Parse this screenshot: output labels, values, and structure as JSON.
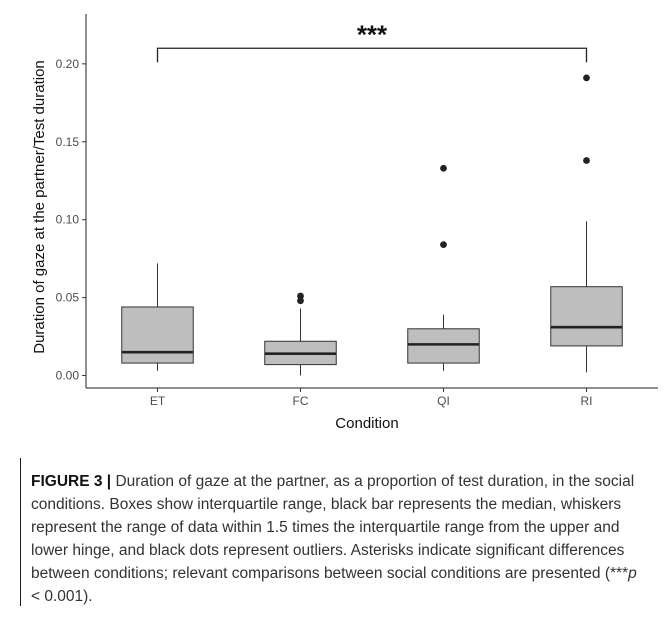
{
  "chart_data": {
    "type": "box",
    "ylabel": "Duration of gaze at the partner/Test duration",
    "xlabel": "Condition",
    "ylim": [
      -0.008,
      0.232
    ],
    "yticks": [
      0.0,
      0.05,
      0.1,
      0.15,
      0.2
    ],
    "ytick_labels": [
      "0.00",
      "0.05",
      "0.10",
      "0.15",
      "0.20"
    ],
    "grid": false,
    "box_color": "#bebebe",
    "categories": [
      "ET",
      "FC",
      "QI",
      "RI"
    ],
    "boxes": [
      {
        "category": "ET",
        "whisker_low": 0.003,
        "q1": 0.008,
        "median": 0.015,
        "q3": 0.044,
        "whisker_high": 0.072,
        "outliers": []
      },
      {
        "category": "FC",
        "whisker_low": 0.0,
        "q1": 0.007,
        "median": 0.014,
        "q3": 0.022,
        "whisker_high": 0.043,
        "outliers": [
          0.048,
          0.051
        ]
      },
      {
        "category": "QI",
        "whisker_low": 0.003,
        "q1": 0.008,
        "median": 0.02,
        "q3": 0.03,
        "whisker_high": 0.039,
        "outliers": [
          0.084,
          0.133
        ]
      },
      {
        "category": "RI",
        "whisker_low": 0.002,
        "q1": 0.019,
        "median": 0.031,
        "q3": 0.057,
        "whisker_high": 0.099,
        "outliers": [
          0.138,
          0.191
        ]
      }
    ],
    "significance": {
      "from": "ET",
      "to": "RI",
      "y": 0.21,
      "label": "***"
    }
  },
  "caption": {
    "figure_label": "FIGURE 3 |",
    "text_main": " Duration of gaze at the partner, as a proportion of test duration, in the social conditions. Boxes show interquartile range, black bar represents the median, whiskers represent the range of data within 1.5 times the interquartile range from the upper and lower hinge, and black dots represent outliers. Asterisks indicate significant differences between conditions; relevant comparisons between social conditions are presented (",
    "p_stars": "***",
    "p_symbol": "p",
    "p_rest": " < 0.001)."
  }
}
